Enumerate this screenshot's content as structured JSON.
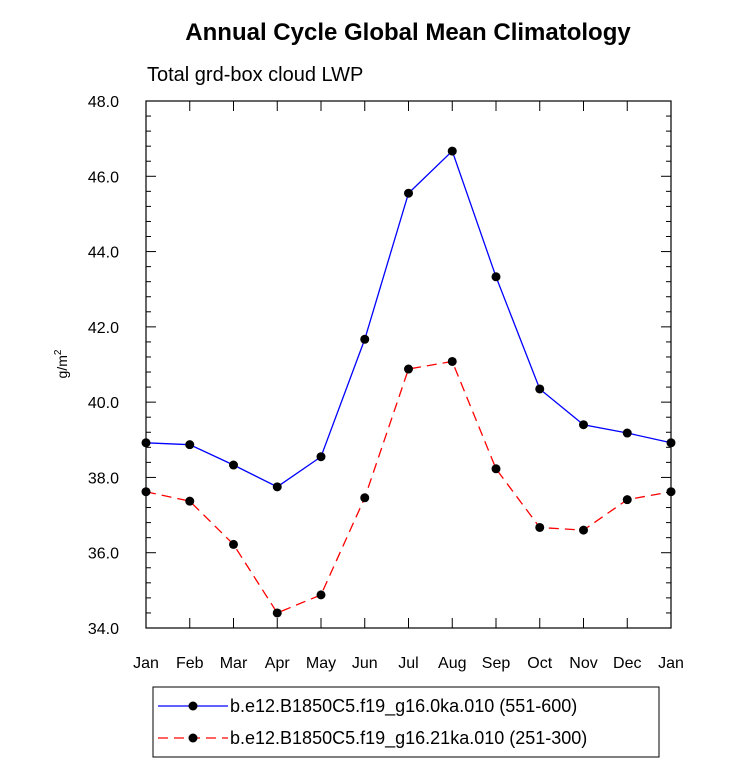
{
  "chart_data": {
    "type": "line",
    "title": "Annual Cycle Global Mean Climatology",
    "subtitle": "Total grd-box cloud LWP",
    "ylabel": "g/m",
    "ylabel_superscript": "2",
    "categories": [
      "Jan",
      "Feb",
      "Mar",
      "Apr",
      "May",
      "Jun",
      "Jul",
      "Aug",
      "Sep",
      "Oct",
      "Nov",
      "Dec",
      "Jan"
    ],
    "ylim": [
      34.0,
      48.0
    ],
    "yticks": [
      "34.0",
      "36.0",
      "38.0",
      "40.0",
      "42.0",
      "44.0",
      "46.0",
      "48.0"
    ],
    "series": [
      {
        "name": "b.e12.B1850C5.f19_g16.0ka.010 (551-600)",
        "color": "#0000ff",
        "dash": "solid",
        "values": [
          38.92,
          38.87,
          38.33,
          37.75,
          38.55,
          41.67,
          45.55,
          46.67,
          43.33,
          40.35,
          39.4,
          39.18,
          38.92
        ]
      },
      {
        "name": "b.e12.B1850C5.f19_g16.21ka.010 (251-300)",
        "color": "#ff0000",
        "dash": "dashed",
        "values": [
          37.62,
          37.37,
          36.22,
          34.4,
          34.88,
          37.46,
          40.88,
          41.08,
          38.23,
          36.67,
          36.6,
          37.41,
          37.62
        ]
      }
    ]
  }
}
